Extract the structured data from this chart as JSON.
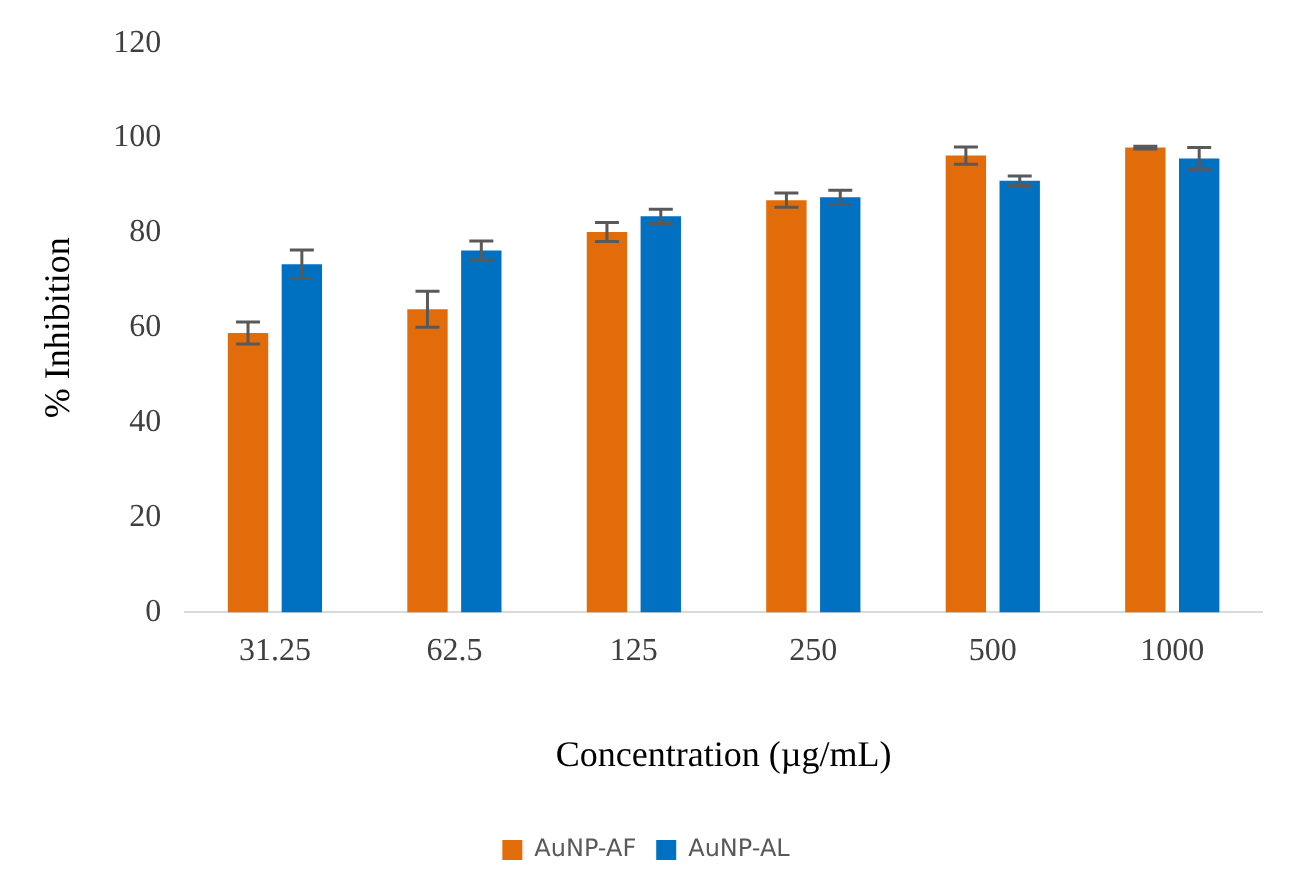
{
  "chart_data": {
    "type": "bar",
    "xlabel": "Concentration (µg/mL)",
    "ylabel": "% Inhibition",
    "categories": [
      "31.25",
      "62.5",
      "125",
      "250",
      "500",
      "1000"
    ],
    "series": [
      {
        "name": "AuNP-AF",
        "color": "#e36c0a",
        "values": [
          58.9,
          63.9,
          80.2,
          86.9,
          96.3,
          98.0
        ],
        "errors": [
          2.3,
          3.8,
          2.0,
          1.5,
          1.8,
          0.3
        ]
      },
      {
        "name": "AuNP-AL",
        "color": "#0070c0",
        "values": [
          73.4,
          76.3,
          83.5,
          87.5,
          91.0,
          95.7
        ],
        "errors": [
          3.0,
          2.0,
          1.5,
          1.5,
          1.0,
          2.3
        ]
      }
    ],
    "ylim": [
      0,
      120
    ],
    "yticks": [
      0,
      20,
      40,
      60,
      80,
      100,
      120
    ],
    "grid": false,
    "legend": "bottom"
  }
}
